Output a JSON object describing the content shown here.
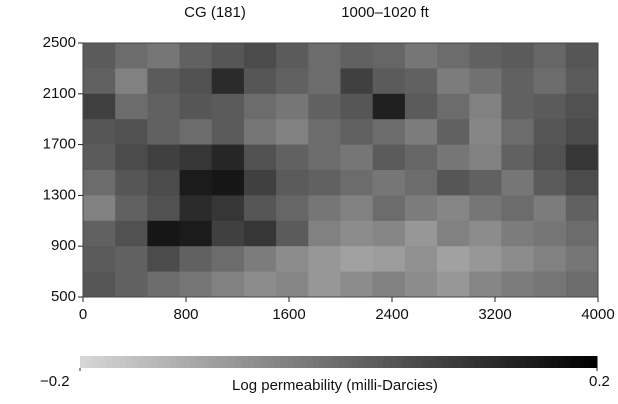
{
  "chart_data": {
    "type": "heatmap",
    "title": "CG  (181)",
    "subtitle": "1000–1020 ft",
    "x": [
      125,
      375,
      625,
      875,
      1125,
      1375,
      1625,
      1875,
      2125,
      2375,
      2625,
      2875,
      3125,
      3375,
      3625,
      3875
    ],
    "y": [
      2400,
      2200,
      2000,
      1800,
      1600,
      1400,
      1200,
      1000,
      800,
      600
    ],
    "z": [
      [
        0.03,
        0.0,
        -0.02,
        0.02,
        0.04,
        0.06,
        0.03,
        0.0,
        0.02,
        0.01,
        -0.02,
        0.0,
        0.02,
        0.03,
        0.01,
        0.04
      ],
      [
        0.02,
        -0.04,
        0.03,
        0.05,
        0.12,
        0.04,
        0.02,
        0.0,
        0.08,
        0.03,
        0.02,
        -0.03,
        -0.01,
        0.02,
        0.0,
        0.03
      ],
      [
        0.08,
        0.0,
        0.02,
        0.04,
        0.03,
        0.0,
        -0.02,
        0.02,
        0.04,
        0.14,
        0.03,
        0.0,
        -0.04,
        0.02,
        0.03,
        0.05
      ],
      [
        0.04,
        0.05,
        0.02,
        0.0,
        0.03,
        -0.02,
        -0.04,
        0.0,
        0.02,
        0.0,
        -0.03,
        0.02,
        -0.05,
        0.0,
        0.04,
        0.06
      ],
      [
        0.03,
        0.06,
        0.08,
        0.1,
        0.13,
        0.05,
        0.02,
        0.0,
        -0.02,
        0.03,
        0.01,
        -0.02,
        -0.04,
        0.02,
        0.05,
        0.1
      ],
      [
        0.0,
        0.04,
        0.06,
        0.15,
        0.16,
        0.08,
        0.03,
        0.02,
        0.0,
        -0.02,
        0.0,
        0.04,
        0.02,
        -0.02,
        0.03,
        0.06
      ],
      [
        -0.04,
        0.02,
        0.05,
        0.12,
        0.1,
        0.04,
        0.01,
        -0.02,
        -0.04,
        0.0,
        -0.03,
        -0.05,
        -0.02,
        0.0,
        -0.03,
        0.02
      ],
      [
        0.02,
        0.05,
        0.16,
        0.15,
        0.08,
        0.1,
        0.03,
        -0.04,
        -0.06,
        -0.05,
        -0.08,
        -0.04,
        -0.06,
        -0.03,
        -0.02,
        0.0
      ],
      [
        0.03,
        0.02,
        0.06,
        0.02,
        0.0,
        -0.03,
        -0.06,
        -0.08,
        -0.1,
        -0.09,
        -0.07,
        -0.1,
        -0.08,
        -0.06,
        -0.04,
        -0.02
      ],
      [
        0.04,
        0.02,
        0.0,
        -0.02,
        -0.04,
        -0.06,
        -0.05,
        -0.08,
        -0.06,
        -0.04,
        -0.06,
        -0.08,
        -0.05,
        -0.03,
        -0.02,
        0.0
      ]
    ],
    "xlim": [
      0,
      4000
    ],
    "xticks": [
      0,
      800,
      1600,
      2400,
      3200,
      4000
    ],
    "ylim": [
      500,
      2500
    ],
    "yticks": [
      500,
      900,
      1300,
      1700,
      2100,
      2500
    ],
    "colorbar": {
      "label": "Log permeability (milli-Darcies)",
      "lim": [
        -0.2,
        0.2
      ],
      "ticks": [
        {
          "value": -0.2,
          "label": "−0.2"
        },
        0.2
      ]
    }
  }
}
